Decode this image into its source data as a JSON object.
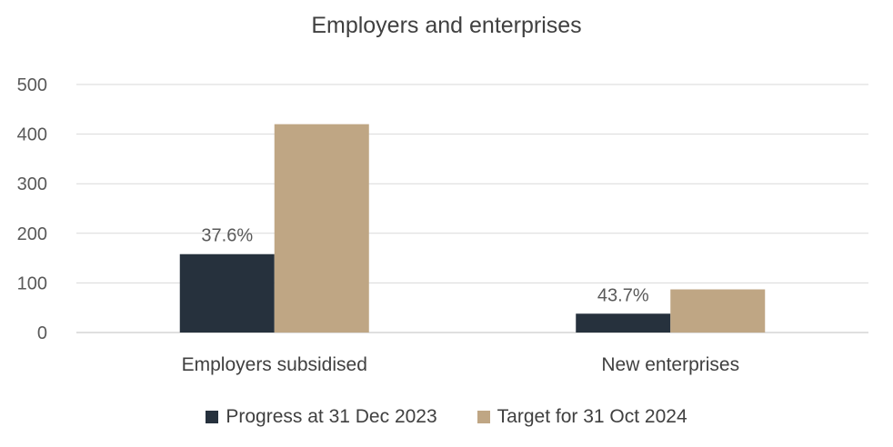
{
  "chart_data": {
    "type": "bar",
    "title": "Employers and enterprises",
    "categories": [
      "Employers subsidised",
      "New enterprises"
    ],
    "series": [
      {
        "name": "Progress at 31 Dec 2023",
        "values": [
          158,
          38
        ],
        "color": "#26313d",
        "data_labels": [
          "37.6%",
          "43.7%"
        ]
      },
      {
        "name": "Target for 31 Oct 2024",
        "values": [
          420,
          87
        ],
        "color": "#bfa684"
      }
    ],
    "ylim": [
      0,
      500
    ],
    "yticks": [
      0,
      100,
      200,
      300,
      400,
      500
    ],
    "grid": true,
    "legend_position": "bottom"
  }
}
